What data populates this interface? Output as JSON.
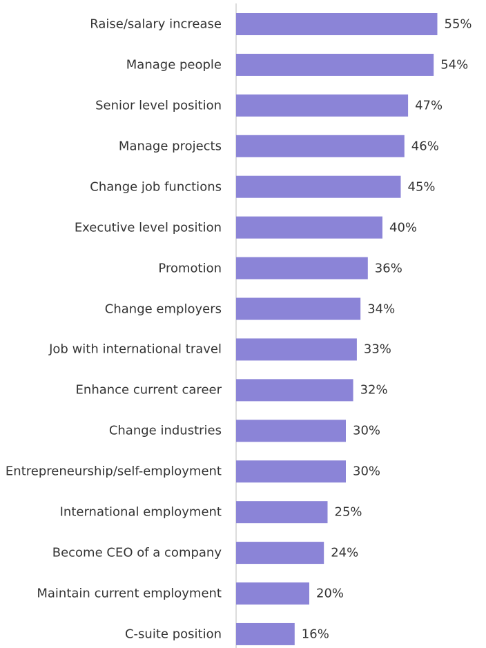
{
  "chart_data": {
    "type": "bar",
    "orientation": "horizontal",
    "color": "#8b84d7",
    "categories": [
      "Raise/salary increase",
      "Manage people",
      "Senior level position",
      "Manage projects",
      "Change job functions",
      "Executive level position",
      "Promotion",
      "Change employers",
      "Job with international travel",
      "Enhance current career",
      "Change industries",
      "Entrepreneurship/self-employment",
      "International employment",
      "Become CEO of a company",
      "Maintain current employment",
      "C-suite position"
    ],
    "values": [
      55,
      54,
      47,
      46,
      45,
      40,
      36,
      34,
      33,
      32,
      30,
      30,
      25,
      24,
      20,
      16
    ],
    "value_labels": [
      "55%",
      "54%",
      "47%",
      "46%",
      "45%",
      "40%",
      "36%",
      "34%",
      "33%",
      "32%",
      "30%",
      "30%",
      "25%",
      "24%",
      "20%",
      "16%"
    ]
  }
}
